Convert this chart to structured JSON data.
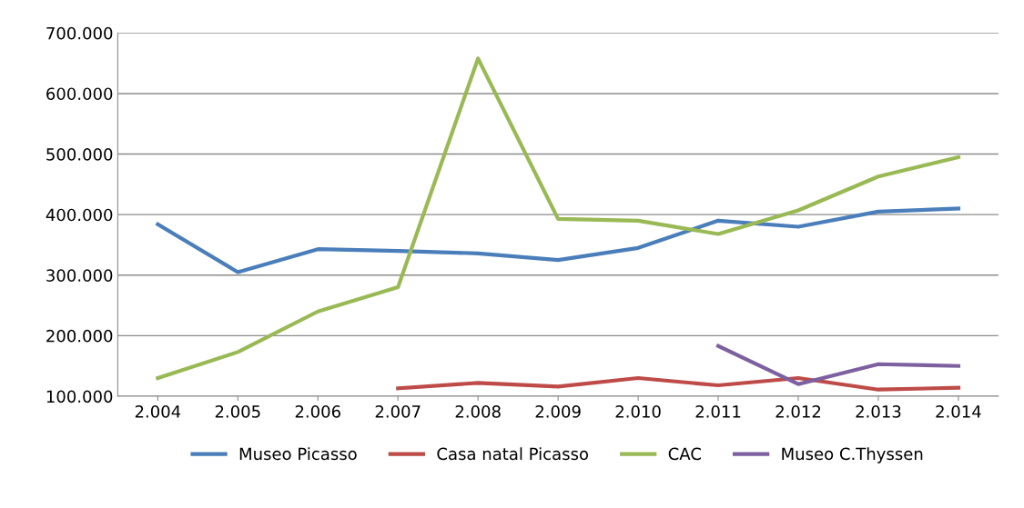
{
  "chart_data": {
    "type": "line",
    "categories": [
      "2.004",
      "2.005",
      "2.006",
      "2.007",
      "2.008",
      "2.009",
      "2.010",
      "2.011",
      "2.012",
      "2.013",
      "2.014"
    ],
    "series": [
      {
        "name": "Museo Picasso",
        "color": "#4a7ebb",
        "values": [
          384000,
          305000,
          343000,
          340000,
          336000,
          325000,
          345000,
          390000,
          380000,
          405000,
          410000
        ]
      },
      {
        "name": "Casa natal Picasso",
        "color": "#be4b48",
        "values": [
          null,
          null,
          null,
          113000,
          122000,
          116000,
          130000,
          118000,
          130000,
          111000,
          114000
        ]
      },
      {
        "name": "CAC",
        "color": "#98b954",
        "values": [
          130000,
          173000,
          240000,
          280000,
          658000,
          393000,
          390000,
          368000,
          407000,
          463000,
          495000
        ]
      },
      {
        "name": "Museo C.Thyssen",
        "color": "#7d60a0",
        "values": [
          null,
          null,
          null,
          null,
          null,
          null,
          null,
          183000,
          120000,
          153000,
          150000
        ]
      }
    ],
    "ylim": [
      100000,
      700000
    ],
    "yticks": [
      {
        "value": 100000,
        "label": "100.000"
      },
      {
        "value": 200000,
        "label": "200.000"
      },
      {
        "value": 300000,
        "label": "300.000"
      },
      {
        "value": 400000,
        "label": "400.000"
      },
      {
        "value": 500000,
        "label": "500.000"
      },
      {
        "value": 600000,
        "label": "600.000"
      },
      {
        "value": 700000,
        "label": "700.000"
      }
    ],
    "grid": "y",
    "legend": "bottom",
    "marker": "none",
    "line_style": "solid"
  }
}
